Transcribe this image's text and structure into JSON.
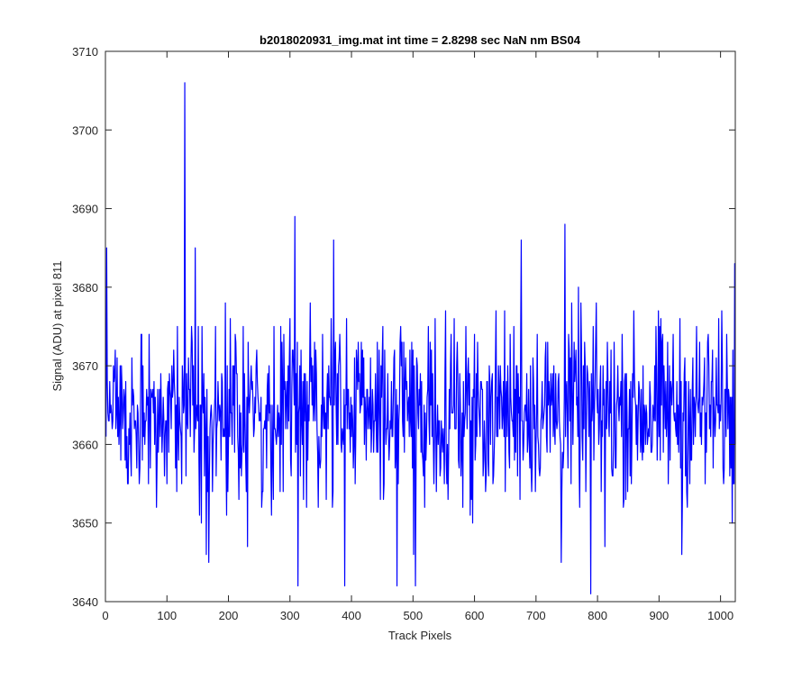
{
  "chart_data": {
    "type": "line",
    "title": "b2018020931_img.mat int time = 2.8298 sec  NaN nm BS04",
    "xlabel": "Track Pixels",
    "ylabel": "Signal (ADU) at pixel 811",
    "xlim": [
      0,
      1024
    ],
    "ylim": [
      3640,
      3710
    ],
    "xticks": [
      0,
      100,
      200,
      300,
      400,
      500,
      600,
      700,
      800,
      900,
      1000
    ],
    "yticks": [
      3640,
      3650,
      3660,
      3670,
      3680,
      3690,
      3700,
      3710
    ],
    "grid": false,
    "line_color": "#0000ff",
    "series_count": 1,
    "point_count": 1024,
    "baseline": 3664,
    "noise_range": [
      3648,
      3681
    ],
    "spikes": [
      {
        "x": 1,
        "y": 3685
      },
      {
        "x": 128,
        "y": 3706
      },
      {
        "x": 145,
        "y": 3685
      },
      {
        "x": 163,
        "y": 3646
      },
      {
        "x": 167,
        "y": 3645
      },
      {
        "x": 230,
        "y": 3647
      },
      {
        "x": 307,
        "y": 3689
      },
      {
        "x": 312,
        "y": 3642
      },
      {
        "x": 370,
        "y": 3686
      },
      {
        "x": 388,
        "y": 3642
      },
      {
        "x": 473,
        "y": 3642
      },
      {
        "x": 500,
        "y": 3646
      },
      {
        "x": 503,
        "y": 3642
      },
      {
        "x": 675,
        "y": 3686
      },
      {
        "x": 740,
        "y": 3645
      },
      {
        "x": 746,
        "y": 3688
      },
      {
        "x": 768,
        "y": 3680
      },
      {
        "x": 788,
        "y": 3641
      },
      {
        "x": 811,
        "y": 3647
      },
      {
        "x": 936,
        "y": 3646
      },
      {
        "x": 1018,
        "y": 3650
      },
      {
        "x": 1022,
        "y": 3683
      }
    ]
  }
}
